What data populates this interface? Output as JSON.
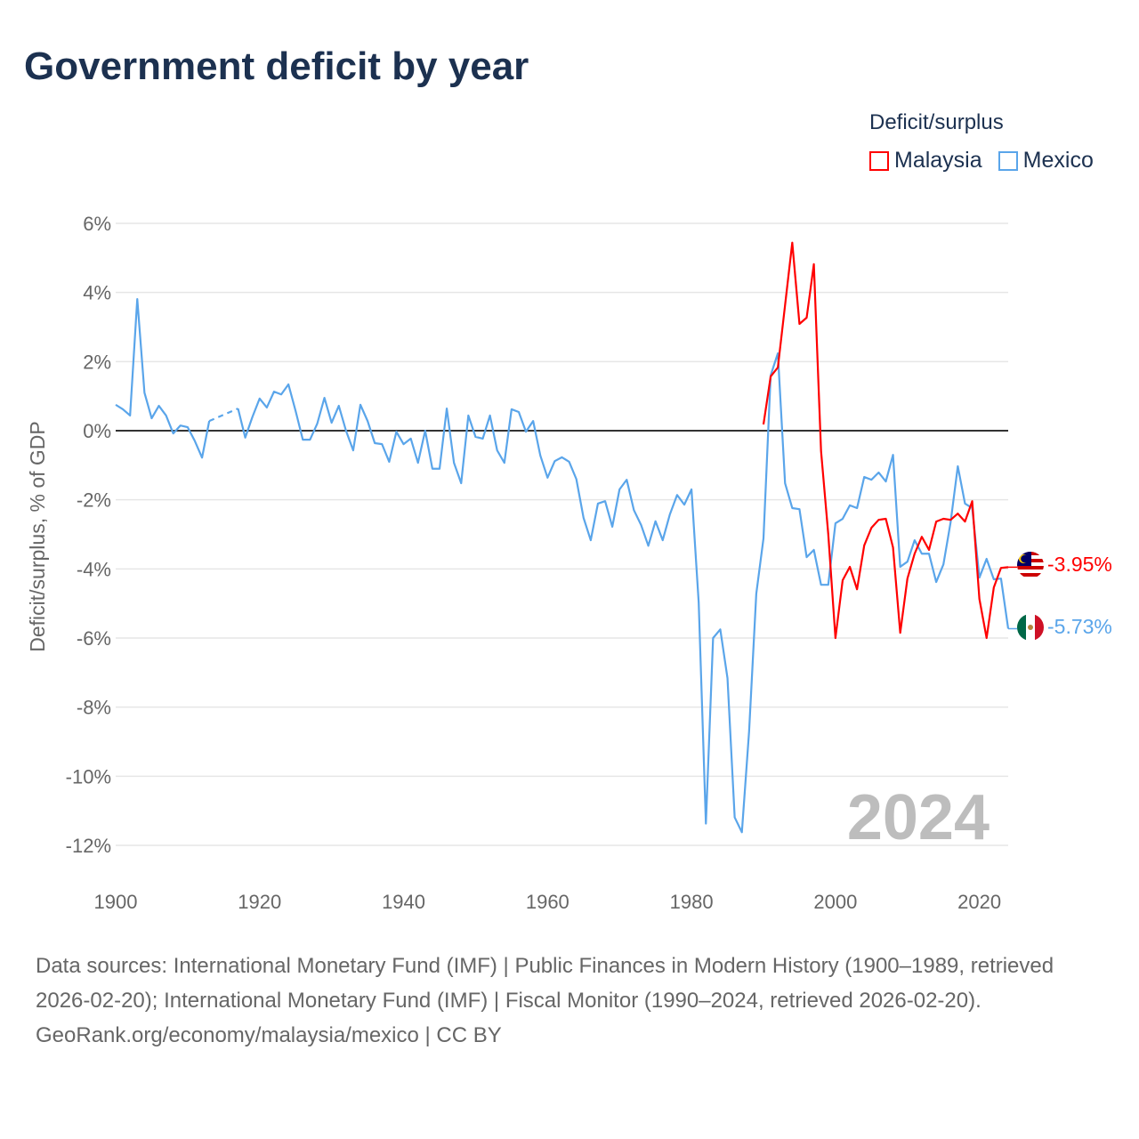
{
  "title": "Government deficit by year",
  "legend": {
    "title": "Deficit/surplus",
    "items": [
      {
        "label": "Malaysia",
        "color": "#ff0000"
      },
      {
        "label": "Mexico",
        "color": "#5aa5ea"
      }
    ]
  },
  "year_label": "2024",
  "end_labels": {
    "malaysia": "-3.95%",
    "mexico": "-5.73%"
  },
  "footer": {
    "sources": "Data sources: International Monetary Fund (IMF) | Public Finances in Modern History (1900–1989, retrieved 2026-02-20); International Monetary Fund (IMF) | Fiscal Monitor (1990–2024, retrieved 2026-02-20).",
    "credit": "GeoRank.org/economy/malaysia/mexico | CC BY"
  },
  "chart_data": {
    "type": "line",
    "title": "Government deficit by year",
    "xlabel": "",
    "ylabel": "Deficit/surplus, % of GDP",
    "xlim": [
      1900,
      2024
    ],
    "ylim": [
      -12,
      6
    ],
    "x_ticks": [
      "1900",
      "1920",
      "1940",
      "1960",
      "1980",
      "2000",
      "2020"
    ],
    "x_tick_values": [
      1900,
      1920,
      1940,
      1960,
      1980,
      2000,
      2020
    ],
    "y_ticks": [
      "6%",
      "4%",
      "2%",
      "0%",
      "-2%",
      "-4%",
      "-6%",
      "-8%",
      "-10%",
      "-12%"
    ],
    "y_tick_values": [
      6,
      4,
      2,
      0,
      -2,
      -4,
      -6,
      -8,
      -10,
      -12
    ],
    "grid": true,
    "legend_position": "top-right",
    "series": [
      {
        "name": "Malaysia",
        "color": "#ff0000",
        "start_year": 1990,
        "values": [
          0.18,
          1.57,
          1.83,
          3.63,
          5.44,
          3.09,
          3.27,
          4.82,
          -0.59,
          -2.99,
          -6.0,
          -4.33,
          -3.94,
          -4.59,
          -3.32,
          -2.81,
          -2.58,
          -2.55,
          -3.38,
          -5.85,
          -4.28,
          -3.56,
          -3.07,
          -3.45,
          -2.63,
          -2.55,
          -2.58,
          -2.4,
          -2.63,
          -2.04,
          -4.87,
          -6.0,
          -4.54,
          -3.97,
          -3.95
        ]
      },
      {
        "name": "Mexico",
        "color": "#5aa5ea",
        "start_year": 1900,
        "values": [
          0.75,
          0.62,
          0.44,
          3.81,
          1.1,
          0.36,
          0.72,
          0.44,
          -0.08,
          0.15,
          0.1,
          -0.3,
          -0.78,
          0.28,
          null,
          null,
          null,
          0.64,
          -0.2,
          0.4,
          0.93,
          0.67,
          1.13,
          1.05,
          1.34,
          0.57,
          -0.26,
          -0.26,
          0.2,
          0.95,
          0.23,
          0.72,
          0.0,
          -0.57,
          0.75,
          0.28,
          -0.36,
          -0.39,
          -0.9,
          -0.03,
          -0.39,
          -0.23,
          -0.93,
          0.0,
          -1.1,
          -1.1,
          0.64,
          -0.93,
          -1.52,
          0.44,
          -0.18,
          -0.23,
          0.44,
          -0.57,
          -0.93,
          0.62,
          0.54,
          -0.03,
          0.28,
          -0.72,
          -1.36,
          -0.88,
          -0.77,
          -0.9,
          -1.4,
          -2.52,
          -3.17,
          -2.11,
          -2.04,
          -2.78,
          -1.7,
          -1.42,
          -2.3,
          -2.73,
          -3.33,
          -2.62,
          -3.17,
          -2.42,
          -1.86,
          -2.14,
          -1.7,
          -4.97,
          -11.37,
          -6.0,
          -5.75,
          -7.16,
          -11.19,
          -11.62,
          -8.71,
          -4.72,
          -3.12,
          1.6,
          2.24,
          -1.52,
          -2.24,
          -2.27,
          -3.66,
          -3.45,
          -4.46,
          -4.46,
          -2.68,
          -2.55,
          -2.16,
          -2.24,
          -1.34,
          -1.42,
          -1.21,
          -1.47,
          -0.7,
          -3.94,
          -3.79,
          -3.17,
          -3.56,
          -3.56,
          -4.38,
          -3.87,
          -2.65,
          -1.03,
          -2.11,
          -2.24,
          -4.25,
          -3.71,
          -4.3,
          -4.28,
          -5.73
        ]
      }
    ]
  }
}
